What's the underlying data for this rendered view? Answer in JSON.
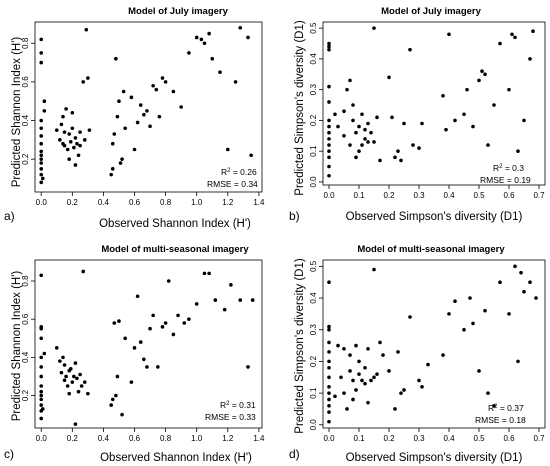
{
  "colors": {
    "point": "#000000",
    "axis": "#000000",
    "background": "#ffffff"
  },
  "chart_data": [
    {
      "type": "scatter",
      "panel_label": "a)",
      "title": "Model of July imagery",
      "xlabel": "Observed Shannon Index (H')",
      "ylabel": "Predicted Shannon Index (H')",
      "xlim": [
        -0.04,
        1.42
      ],
      "ylim": [
        0.03,
        0.91
      ],
      "xticks": [
        "0.0",
        "0.2",
        "0.4",
        "0.6",
        "0.8",
        "1.0",
        "1.2",
        "1.4"
      ],
      "yticks": [
        "0.2",
        "0.4",
        "0.6",
        "0.8"
      ],
      "r2_label": "R",
      "r2_exp": "2",
      "r2_value": " = 0.26",
      "rmse_label": "RMSE = 0.34",
      "x": [
        0,
        0,
        0,
        0,
        0,
        0,
        0,
        0,
        0,
        0,
        0,
        0,
        0,
        0,
        0.01,
        0.02,
        0.02,
        0.1,
        0.12,
        0.13,
        0.14,
        0.14,
        0.15,
        0.15,
        0.16,
        0.17,
        0.18,
        0.18,
        0.19,
        0.2,
        0.2,
        0.21,
        0.22,
        0.22,
        0.23,
        0.24,
        0.25,
        0.25,
        0.27,
        0.28,
        0.29,
        0.3,
        0.31,
        0.45,
        0.46,
        0.46,
        0.47,
        0.48,
        0.49,
        0.5,
        0.51,
        0.52,
        0.53,
        0.54,
        0.58,
        0.6,
        0.62,
        0.64,
        0.66,
        0.68,
        0.7,
        0.72,
        0.74,
        0.76,
        0.78,
        0.8,
        0.85,
        0.9,
        0.95,
        1.0,
        1.03,
        1.05,
        1.08,
        1.1,
        1.15,
        1.2,
        1.25,
        1.28,
        1.33,
        1.35
      ],
      "y": [
        0.08,
        0.12,
        0.15,
        0.18,
        0.2,
        0.22,
        0.24,
        0.28,
        0.32,
        0.36,
        0.4,
        0.7,
        0.75,
        0.82,
        0.1,
        0.45,
        0.5,
        0.35,
        0.3,
        0.38,
        0.28,
        0.42,
        0.27,
        0.34,
        0.46,
        0.25,
        0.33,
        0.2,
        0.29,
        0.36,
        0.44,
        0.26,
        0.17,
        0.31,
        0.28,
        0.22,
        0.34,
        0.27,
        0.6,
        0.3,
        0.87,
        0.62,
        0.35,
        0.12,
        0.15,
        0.28,
        0.33,
        0.72,
        0.42,
        0.5,
        0.18,
        0.2,
        0.55,
        0.36,
        0.52,
        0.25,
        0.39,
        0.48,
        0.43,
        0.45,
        0.37,
        0.58,
        0.56,
        0.42,
        0.62,
        0.6,
        0.55,
        0.47,
        0.75,
        0.83,
        0.82,
        0.8,
        0.85,
        0.72,
        0.65,
        0.25,
        0.6,
        0.88,
        0.83,
        0.22
      ]
    },
    {
      "type": "scatter",
      "panel_label": "b)",
      "title": "Model of July imagery",
      "xlabel": "Observed Simpson's diversity (D1)",
      "ylabel": "Predicted Simpson's diversity (D1)",
      "xlim": [
        -0.02,
        0.72
      ],
      "ylim": [
        -0.01,
        0.52
      ],
      "xticks": [
        "0.0",
        "0.1",
        "0.2",
        "0.3",
        "0.4",
        "0.5",
        "0.6",
        "0.7"
      ],
      "yticks": [
        "0.0",
        "0.1",
        "0.2",
        "0.3",
        "0.4",
        "0.5"
      ],
      "r2_label": "R",
      "r2_exp": "2",
      "r2_value": " = 0.3",
      "rmse_label": "RMSE = 0.19",
      "x": [
        0,
        0,
        0,
        0,
        0,
        0,
        0,
        0,
        0,
        0,
        0,
        0,
        0,
        0,
        0.02,
        0.03,
        0.05,
        0.05,
        0.06,
        0.07,
        0.07,
        0.08,
        0.08,
        0.09,
        0.09,
        0.1,
        0.1,
        0.11,
        0.11,
        0.12,
        0.12,
        0.13,
        0.13,
        0.14,
        0.15,
        0.15,
        0.16,
        0.17,
        0.2,
        0.21,
        0.22,
        0.23,
        0.24,
        0.25,
        0.27,
        0.28,
        0.3,
        0.31,
        0.38,
        0.39,
        0.4,
        0.42,
        0.45,
        0.46,
        0.48,
        0.5,
        0.51,
        0.52,
        0.53,
        0.55,
        0.57,
        0.6,
        0.61,
        0.62,
        0.63,
        0.65,
        0.67,
        0.68
      ],
      "y": [
        0.02,
        0.05,
        0.08,
        0.1,
        0.12,
        0.14,
        0.16,
        0.18,
        0.2,
        0.26,
        0.31,
        0.43,
        0.44,
        0.45,
        0.22,
        0.18,
        0.15,
        0.23,
        0.3,
        0.33,
        0.12,
        0.2,
        0.25,
        0.08,
        0.16,
        0.1,
        0.18,
        0.12,
        0.22,
        0.14,
        0.17,
        0.19,
        0.13,
        0.16,
        0.13,
        0.5,
        0.21,
        0.07,
        0.34,
        0.21,
        0.08,
        0.1,
        0.07,
        0.19,
        0.43,
        0.12,
        0.11,
        0.19,
        0.28,
        0.17,
        0.48,
        0.2,
        0.22,
        0.3,
        0.18,
        0.33,
        0.36,
        0.35,
        0.12,
        0.25,
        0.45,
        0.3,
        0.48,
        0.47,
        0.1,
        0.2,
        0.4,
        0.49
      ]
    },
    {
      "type": "scatter",
      "panel_label": "c)",
      "title": "Model of multi-seasonal imagery",
      "xlabel": "Observed Shannon Index (H')",
      "ylabel": "Predicted Shannon Index (H')",
      "xlim": [
        -0.04,
        1.42
      ],
      "ylim": [
        0.03,
        0.91
      ],
      "xticks": [
        "0.0",
        "0.2",
        "0.4",
        "0.6",
        "0.8",
        "1.0",
        "1.2",
        "1.4"
      ],
      "yticks": [
        "0.2",
        "0.4",
        "0.6",
        "0.8"
      ],
      "r2_label": "R",
      "r2_exp": "2",
      "r2_value": " = 0.31",
      "rmse_label": "RMSE = 0.33",
      "x": [
        0,
        0,
        0,
        0,
        0,
        0,
        0,
        0,
        0,
        0,
        0,
        0,
        0,
        0,
        0.01,
        0.02,
        0.1,
        0.12,
        0.13,
        0.14,
        0.15,
        0.15,
        0.16,
        0.17,
        0.18,
        0.18,
        0.19,
        0.2,
        0.21,
        0.22,
        0.22,
        0.23,
        0.24,
        0.25,
        0.26,
        0.27,
        0.28,
        0.3,
        0.45,
        0.46,
        0.47,
        0.48,
        0.49,
        0.5,
        0.52,
        0.54,
        0.58,
        0.6,
        0.62,
        0.64,
        0.66,
        0.68,
        0.7,
        0.72,
        0.75,
        0.78,
        0.8,
        0.82,
        0.85,
        0.88,
        0.92,
        0.95,
        1.0,
        1.05,
        1.08,
        1.12,
        1.18,
        1.22,
        1.28,
        1.33,
        1.36
      ],
      "y": [
        0.08,
        0.12,
        0.15,
        0.18,
        0.2,
        0.22,
        0.25,
        0.3,
        0.35,
        0.4,
        0.5,
        0.55,
        0.56,
        0.83,
        0.13,
        0.42,
        0.45,
        0.38,
        0.32,
        0.4,
        0.28,
        0.36,
        0.3,
        0.25,
        0.33,
        0.21,
        0.34,
        0.27,
        0.3,
        0.37,
        0.05,
        0.29,
        0.22,
        0.31,
        0.25,
        0.85,
        0.27,
        0.21,
        0.15,
        0.18,
        0.58,
        0.2,
        0.3,
        0.59,
        0.1,
        0.5,
        0.27,
        0.45,
        0.72,
        0.48,
        0.39,
        0.35,
        0.55,
        0.62,
        0.35,
        0.56,
        0.58,
        0.8,
        0.52,
        0.62,
        0.58,
        0.6,
        0.68,
        0.84,
        0.84,
        0.7,
        0.65,
        0.78,
        0.7,
        0.35,
        0.7
      ]
    },
    {
      "type": "scatter",
      "panel_label": "d)",
      "title": "Model of multi-seasonal imagery",
      "xlabel": "Observed Simpson's diversity (D1)",
      "ylabel": "Predicted Simpson's diversity (D1)",
      "xlim": [
        -0.02,
        0.72
      ],
      "ylim": [
        -0.01,
        0.52
      ],
      "xticks": [
        "0.0",
        "0.1",
        "0.2",
        "0.3",
        "0.4",
        "0.5",
        "0.6",
        "0.7"
      ],
      "yticks": [
        "0.0",
        "0.1",
        "0.2",
        "0.3",
        "0.4",
        "0.5"
      ],
      "r2_label": "R",
      "r2_exp": "2",
      "r2_value": " = 0.37",
      "rmse_label": "RMSE = 0.18",
      "x": [
        0,
        0,
        0,
        0,
        0,
        0,
        0,
        0,
        0,
        0,
        0,
        0,
        0,
        0,
        0.02,
        0.03,
        0.04,
        0.05,
        0.05,
        0.06,
        0.07,
        0.07,
        0.08,
        0.08,
        0.09,
        0.09,
        0.1,
        0.1,
        0.11,
        0.12,
        0.12,
        0.13,
        0.13,
        0.14,
        0.15,
        0.15,
        0.16,
        0.17,
        0.18,
        0.2,
        0.22,
        0.23,
        0.24,
        0.25,
        0.27,
        0.3,
        0.31,
        0.33,
        0.38,
        0.4,
        0.42,
        0.45,
        0.47,
        0.48,
        0.5,
        0.52,
        0.53,
        0.55,
        0.57,
        0.6,
        0.62,
        0.63,
        0.64,
        0.65,
        0.67,
        0.69
      ],
      "y": [
        0.01,
        0.04,
        0.06,
        0.08,
        0.1,
        0.12,
        0.15,
        0.18,
        0.2,
        0.26,
        0.3,
        0.31,
        0.45,
        0.23,
        0.09,
        0.25,
        0.15,
        0.1,
        0.24,
        0.05,
        0.17,
        0.22,
        0.08,
        0.14,
        0.25,
        0.11,
        0.16,
        0.2,
        0.14,
        0.13,
        0.18,
        0.24,
        0.07,
        0.14,
        0.49,
        0.15,
        0.16,
        0.26,
        0.22,
        0.17,
        0.05,
        0.23,
        0.1,
        0.11,
        0.34,
        0.14,
        0.12,
        0.19,
        0.22,
        0.35,
        0.39,
        0.3,
        0.4,
        0.32,
        0.17,
        0.36,
        0.1,
        0.06,
        0.45,
        0.35,
        0.5,
        0.2,
        0.48,
        0.42,
        0.45,
        0.4
      ]
    }
  ]
}
